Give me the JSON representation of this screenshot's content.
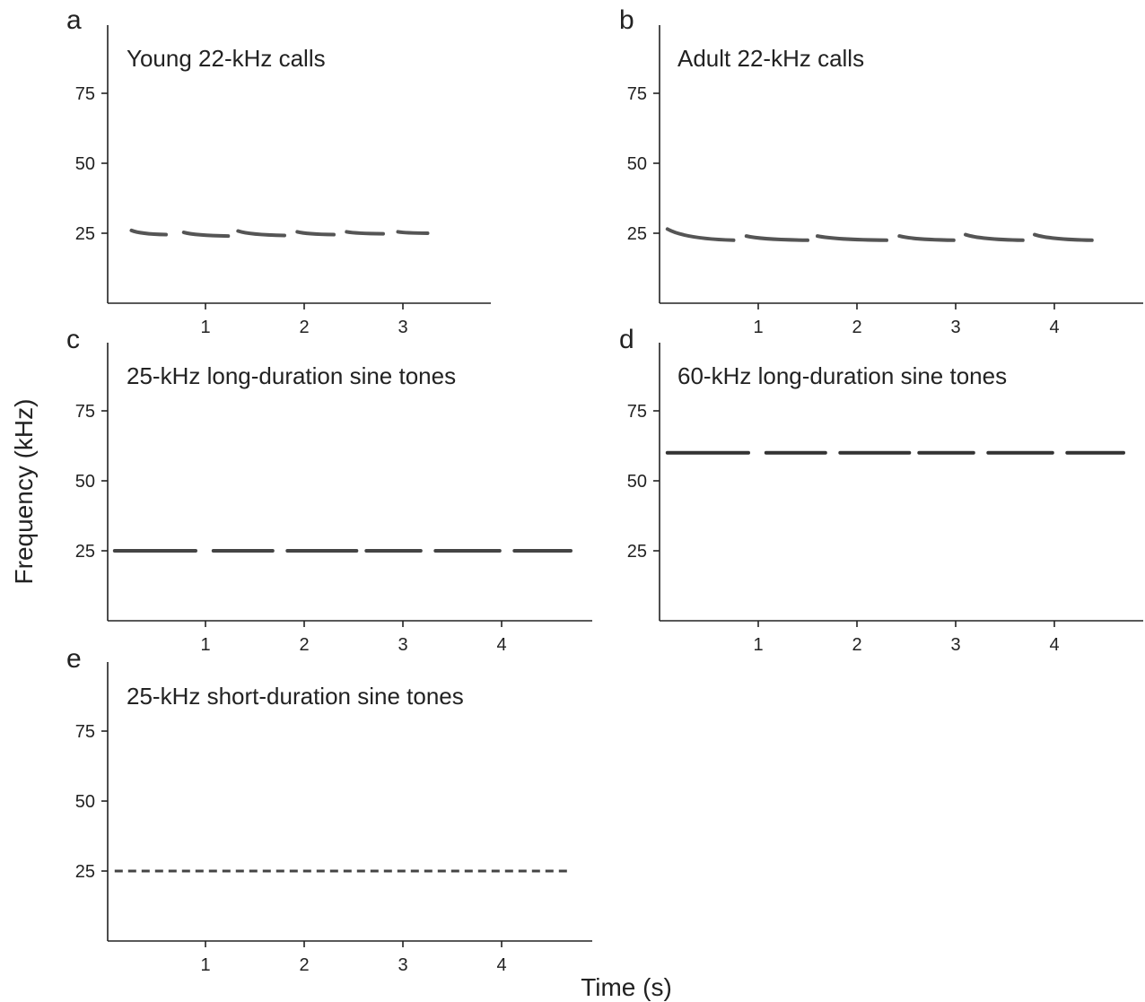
{
  "figure": {
    "ylabel": "Frequency (kHz)",
    "xlabel": "Time (s)"
  },
  "chart_data": [
    {
      "type": "spectrogram",
      "panel_letter": "a",
      "title": "Young 22-kHz calls",
      "yticks": [
        25,
        50,
        75
      ],
      "xticks": [
        1,
        2,
        3
      ],
      "xlim": [
        -0.1,
        3.8
      ],
      "ylim": [
        0,
        100
      ],
      "segments": [
        {
          "start": 0.25,
          "end": 0.6,
          "f_start": 26,
          "f_end": 24.5
        },
        {
          "start": 0.78,
          "end": 1.23,
          "f_start": 25.3,
          "f_end": 24
        },
        {
          "start": 1.33,
          "end": 1.8,
          "f_start": 25.8,
          "f_end": 24.2
        },
        {
          "start": 1.93,
          "end": 2.3,
          "f_start": 25.5,
          "f_end": 24.5
        },
        {
          "start": 2.43,
          "end": 2.8,
          "f_start": 25.5,
          "f_end": 24.8
        },
        {
          "start": 2.95,
          "end": 3.25,
          "f_start": 25.5,
          "f_end": 25
        }
      ],
      "grid": false,
      "color": "#555555"
    },
    {
      "type": "spectrogram",
      "panel_letter": "b",
      "title": "Adult 22-kHz calls",
      "yticks": [
        25,
        50,
        75
      ],
      "xticks": [
        1,
        2,
        3,
        4
      ],
      "xlim": [
        -0.1,
        4.8
      ],
      "ylim": [
        0,
        100
      ],
      "segments": [
        {
          "start": 0.08,
          "end": 0.75,
          "f_start": 26.5,
          "f_end": 22.5
        },
        {
          "start": 0.88,
          "end": 1.5,
          "f_start": 24,
          "f_end": 22.5
        },
        {
          "start": 1.6,
          "end": 2.3,
          "f_start": 24,
          "f_end": 22.5
        },
        {
          "start": 2.43,
          "end": 2.98,
          "f_start": 24,
          "f_end": 22.5
        },
        {
          "start": 3.1,
          "end": 3.68,
          "f_start": 24.5,
          "f_end": 22.5
        },
        {
          "start": 3.8,
          "end": 4.38,
          "f_start": 24.5,
          "f_end": 22.5
        }
      ],
      "grid": false,
      "color": "#555555"
    },
    {
      "type": "spectrogram",
      "panel_letter": "c",
      "title": "25-kHz long-duration sine tones",
      "yticks": [
        25,
        50,
        75
      ],
      "xticks": [
        1,
        2,
        3,
        4
      ],
      "xlim": [
        -0.1,
        4.8
      ],
      "ylim": [
        0,
        100
      ],
      "segments": [
        {
          "start": 0.08,
          "end": 0.9,
          "f_start": 25,
          "f_end": 25
        },
        {
          "start": 1.08,
          "end": 1.68,
          "f_start": 25,
          "f_end": 25
        },
        {
          "start": 1.83,
          "end": 2.53,
          "f_start": 25,
          "f_end": 25
        },
        {
          "start": 2.63,
          "end": 3.18,
          "f_start": 25,
          "f_end": 25
        },
        {
          "start": 3.33,
          "end": 3.98,
          "f_start": 25,
          "f_end": 25
        },
        {
          "start": 4.13,
          "end": 4.7,
          "f_start": 25,
          "f_end": 25
        }
      ],
      "grid": false,
      "color": "#444444"
    },
    {
      "type": "spectrogram",
      "panel_letter": "d",
      "title": "60-kHz long-duration sine tones",
      "yticks": [
        25,
        50,
        75
      ],
      "xticks": [
        1,
        2,
        3,
        4
      ],
      "xlim": [
        -0.1,
        4.8
      ],
      "ylim": [
        0,
        100
      ],
      "segments": [
        {
          "start": 0.08,
          "end": 0.9,
          "f_start": 60,
          "f_end": 60
        },
        {
          "start": 1.08,
          "end": 1.68,
          "f_start": 60,
          "f_end": 60
        },
        {
          "start": 1.83,
          "end": 2.53,
          "f_start": 60,
          "f_end": 60
        },
        {
          "start": 2.63,
          "end": 3.18,
          "f_start": 60,
          "f_end": 60
        },
        {
          "start": 3.33,
          "end": 3.98,
          "f_start": 60,
          "f_end": 60
        },
        {
          "start": 4.13,
          "end": 4.7,
          "f_start": 60,
          "f_end": 60
        }
      ],
      "grid": false,
      "color": "#333333"
    },
    {
      "type": "spectrogram",
      "panel_letter": "e",
      "title": "25-kHz short-duration sine tones",
      "yticks": [
        25,
        50,
        75
      ],
      "xticks": [
        1,
        2,
        3,
        4
      ],
      "xlim": [
        -0.1,
        4.8
      ],
      "ylim": [
        0,
        100
      ],
      "segments": [
        {
          "start": 0.08,
          "end": 4.7,
          "f_start": 25,
          "f_end": 25,
          "pattern": "short pulses"
        }
      ],
      "grid": false,
      "color": "#444444"
    }
  ]
}
